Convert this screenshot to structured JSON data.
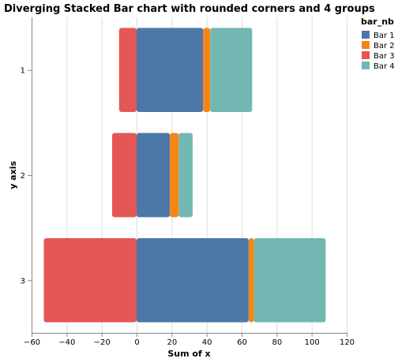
{
  "chart_data": {
    "type": "bar",
    "orientation": "horizontal",
    "stacking": "diverging",
    "title": "Diverging Stacked Bar chart with rounded corners and 4 groups",
    "xlabel": "Sum of x",
    "ylabel": "y axis",
    "xlim": [
      -60,
      120
    ],
    "xticks": [
      -60,
      -40,
      -20,
      0,
      20,
      40,
      60,
      80,
      100,
      120
    ],
    "categories": [
      "1",
      "2",
      "3"
    ],
    "grid": true,
    "legend": {
      "title": "bar_nb",
      "position": "top-right"
    },
    "series": [
      {
        "name": "Bar 1",
        "color": "#4c78a8",
        "values": [
          38,
          19,
          64
        ]
      },
      {
        "name": "Bar 2",
        "color": "#f58518",
        "values": [
          4,
          5,
          3
        ]
      },
      {
        "name": "Bar 3",
        "color": "#e45756",
        "values": [
          -10,
          -14,
          -53
        ]
      },
      {
        "name": "Bar 4",
        "color": "#72b7b2",
        "values": [
          24,
          8,
          41
        ]
      }
    ]
  }
}
